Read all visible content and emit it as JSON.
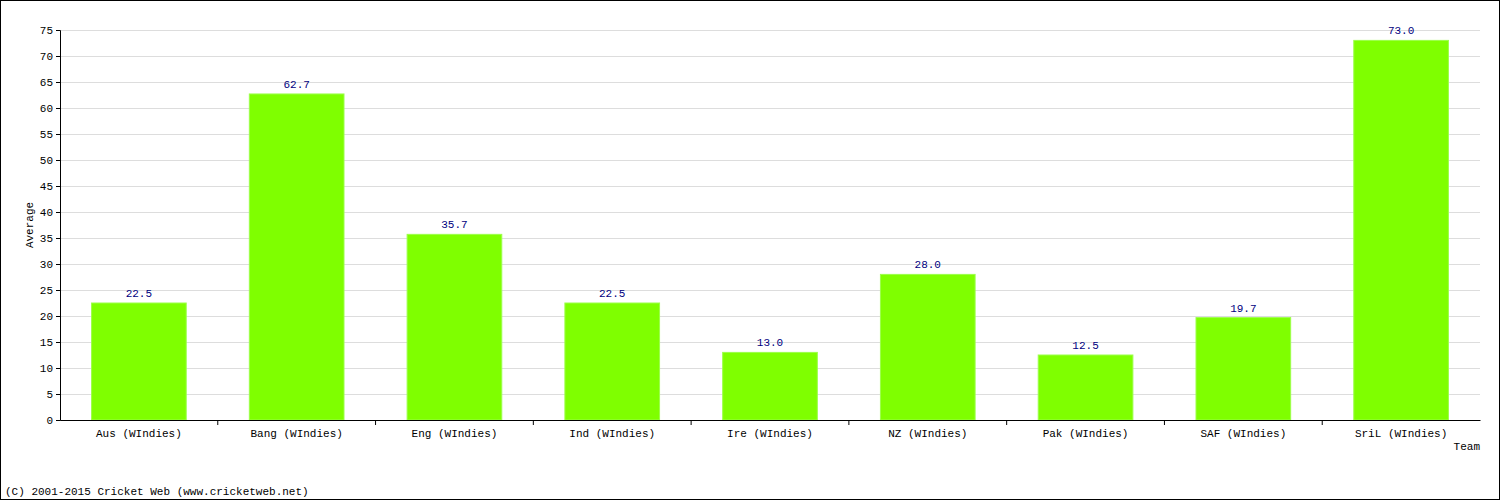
{
  "chart_data": {
    "type": "bar",
    "x_label": "Team",
    "y_label": "Average",
    "annotations": [
      "(C) 2001-2015 Cricket Web (www.cricketweb.net)"
    ],
    "categories": [
      "Aus (WIndies)",
      "Bang (WIndies)",
      "Eng (WIndies)",
      "Ind (WIndies)",
      "Ire (WIndies)",
      "NZ (WIndies)",
      "Pak (WIndies)",
      "SAF (WIndies)",
      "SriL (WIndies)"
    ],
    "values": [
      22.5,
      62.7,
      35.7,
      22.5,
      13.0,
      28.0,
      12.5,
      19.7,
      73.0
    ],
    "value_labels": [
      "22.5",
      "62.7",
      "35.7",
      "22.5",
      "13.0",
      "28.0",
      "12.5",
      "19.7",
      "73.0"
    ],
    "data_labels": true,
    "color": "#7fff00",
    "ylim": [
      0,
      75
    ],
    "yticks": [
      0,
      5,
      10,
      15,
      20,
      25,
      30,
      35,
      40,
      45,
      50,
      55,
      60,
      65,
      70,
      75
    ],
    "grid": true
  }
}
